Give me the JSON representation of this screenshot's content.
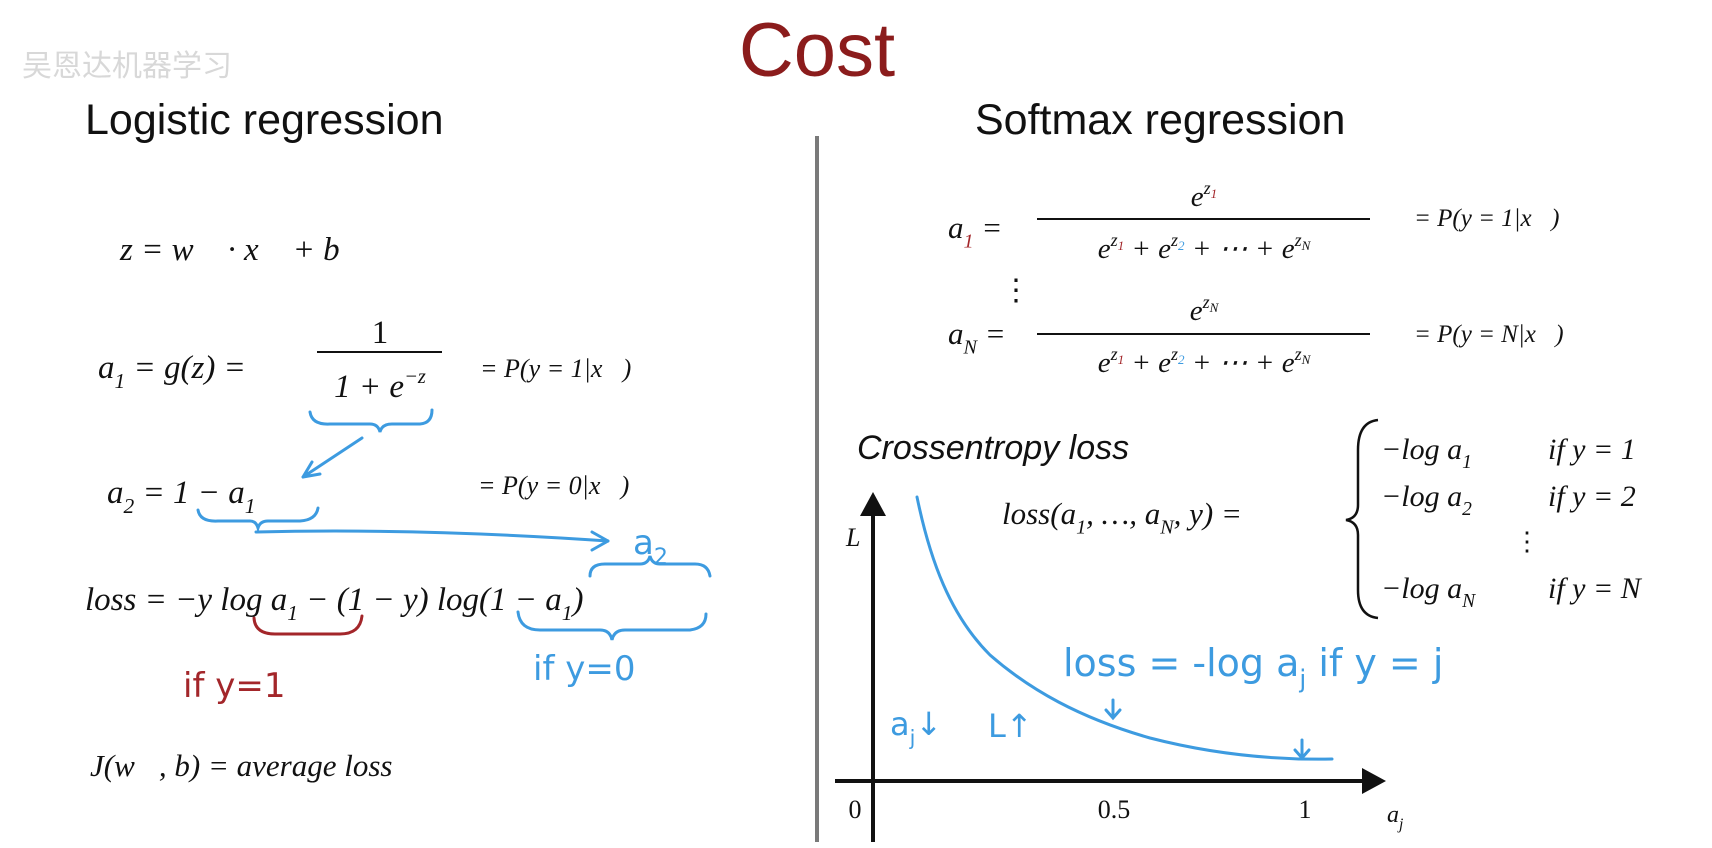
{
  "watermark": "吴恩达机器学习",
  "title": "Cost",
  "left": {
    "heading": "Logistic regression",
    "eq_z": [
      "z = w⃗ · x⃗ + b"
    ],
    "eq_a1": {
      "lhs": [
        "a",
        {
          "sub": "1"
        },
        " = g(z) ="
      ],
      "num": [
        "1"
      ],
      "den": [
        "1 + e",
        {
          "sup": "−z"
        }
      ],
      "prob": [
        "= P(y = 1|x⃗)"
      ]
    },
    "eq_a2": {
      "lhs": [
        "a",
        {
          "sub": "2"
        },
        " = 1 − a",
        {
          "sub": "1"
        }
      ],
      "prob": [
        "= P(y = 0|x⃗)"
      ]
    },
    "eq_loss": [
      "loss = −y log a",
      {
        "sub": "1"
      },
      " − (1 − y) log(1 − a",
      {
        "sub": "1"
      },
      ")"
    ],
    "note_a2": [
      "a",
      {
        "sub": "2"
      }
    ],
    "note_y1": [
      "if y=1"
    ],
    "note_y0": [
      "if y=0"
    ],
    "eq_j": [
      "J(w⃗, b) = average loss"
    ]
  },
  "right": {
    "heading": "Softmax regression",
    "eq_a1": {
      "lhs": [
        "a",
        {
          "sub": "1",
          "color": "#a3262a"
        },
        " ="
      ],
      "num": [
        "e",
        {
          "sup": "z"
        },
        {
          "supsub": "1",
          "color": "#a3262a"
        }
      ],
      "den": [
        "e",
        {
          "sup": "z"
        },
        {
          "supsub": "1",
          "color": "#a3262a"
        },
        " + e",
        {
          "sup": "z"
        },
        {
          "supsub": "2",
          "color": "#3d9be0"
        },
        " + ⋯ + e",
        {
          "sup": "z"
        },
        {
          "supsub": "N"
        }
      ],
      "prob": [
        "= P(y = 1|x⃗)"
      ]
    },
    "vdots": "⋮",
    "eq_an": {
      "lhs": [
        "a",
        {
          "sub": "N"
        },
        " ="
      ],
      "num": [
        "e",
        {
          "sup": "z"
        },
        {
          "supsub": "N"
        }
      ],
      "den": [
        "e",
        {
          "sup": "z"
        },
        {
          "supsub": "1",
          "color": "#a3262a"
        },
        " + e",
        {
          "sup": "z"
        },
        {
          "supsub": "2",
          "color": "#3d9be0"
        },
        " + ⋯ + e",
        {
          "sup": "z"
        },
        {
          "supsub": "N"
        }
      ],
      "prob": [
        "= P(y = N|x⃗)"
      ]
    },
    "loss_heading": "Crossentropy loss",
    "loss_lhs": [
      "loss(a",
      {
        "sub": "1"
      },
      ", …, a",
      {
        "sub": "N"
      },
      ", y) ="
    ],
    "cases": [
      {
        "expr": [
          "−log a",
          {
            "sub": "1"
          }
        ],
        "cond": [
          "if y = 1"
        ]
      },
      {
        "expr": [
          "−log a",
          {
            "sub": "2"
          }
        ],
        "cond": [
          "if y = 2"
        ]
      },
      {
        "expr": [
          "−log a",
          {
            "sub": "N"
          }
        ],
        "cond": [
          "if y = N"
        ]
      }
    ],
    "cases_dots": "⋮",
    "plot": {
      "y_label": [
        "L"
      ],
      "x_label": [
        "a",
        {
          "sub": "j"
        }
      ],
      "xticks": [
        "0",
        "0.5",
        "1"
      ],
      "note_loss": [
        "loss = -log a",
        {
          "sub": "j"
        },
        "  if y = j"
      ],
      "note_aj": [
        "a",
        {
          "sub": "j"
        },
        "↓"
      ],
      "note_l": [
        "L↑"
      ]
    }
  }
}
